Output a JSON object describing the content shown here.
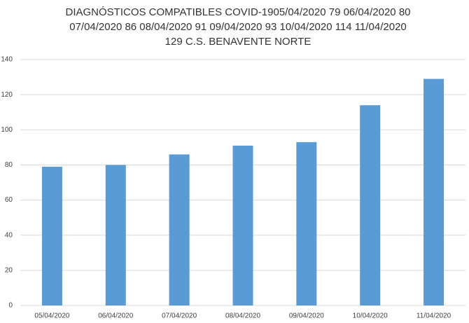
{
  "chart_data": {
    "type": "bar",
    "title": [
      "DIAGNÓSTICOS COMPATIBLES COVID-1905/04/2020 79 06/04/2020 80",
      "07/04/2020 86 08/04/2020 91 09/04/2020 93 10/04/2020 114 11/04/2020",
      "129  C.S. BENAVENTE NORTE"
    ],
    "categories": [
      "05/04/2020",
      "06/04/2020",
      "07/04/2020",
      "08/04/2020",
      "09/04/2020",
      "10/04/2020",
      "11/04/2020"
    ],
    "values": [
      79,
      80,
      86,
      91,
      93,
      114,
      129
    ],
    "color": "#5b9bd5",
    "ylim": [
      0,
      140
    ],
    "yticks": [
      0,
      20,
      40,
      60,
      80,
      100,
      120,
      140
    ],
    "grid": true
  }
}
